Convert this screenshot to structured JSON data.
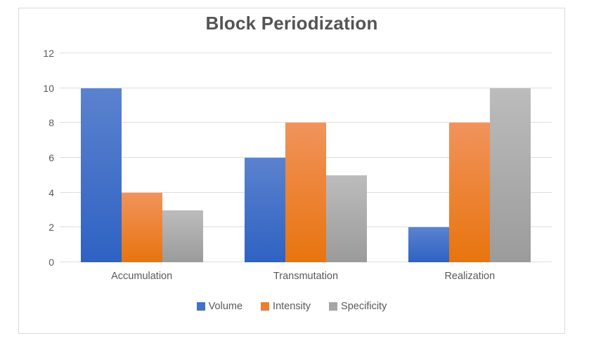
{
  "chart_data": {
    "type": "bar",
    "title": "Block Periodization",
    "categories": [
      "Accumulation",
      "Transmutation",
      "Realization"
    ],
    "series": [
      {
        "name": "Volume",
        "color": "#4472C4",
        "gradient": [
          "#5b82ce",
          "#2e62c3"
        ],
        "values": [
          10,
          6,
          2
        ]
      },
      {
        "name": "Intensity",
        "color": "#ED7D31",
        "gradient": [
          "#f1935c",
          "#e8740e"
        ],
        "values": [
          4,
          8,
          8
        ]
      },
      {
        "name": "Specificity",
        "color": "#A5A5A5",
        "gradient": [
          "#bcbcbc",
          "#9b9b9b"
        ],
        "values": [
          3,
          5,
          10
        ]
      }
    ],
    "xlabel": "",
    "ylabel": "",
    "ylim": [
      0,
      12
    ],
    "yticks": [
      0,
      2,
      4,
      6,
      8,
      10,
      12
    ],
    "grid": true,
    "legend_position": "bottom"
  },
  "styles": {
    "title_color": "#545454",
    "axis_text_color": "#595959",
    "gridline_color": "#dcdcdc",
    "chart_border_color": "#d9d9d9",
    "background_color": "#ffffff"
  }
}
